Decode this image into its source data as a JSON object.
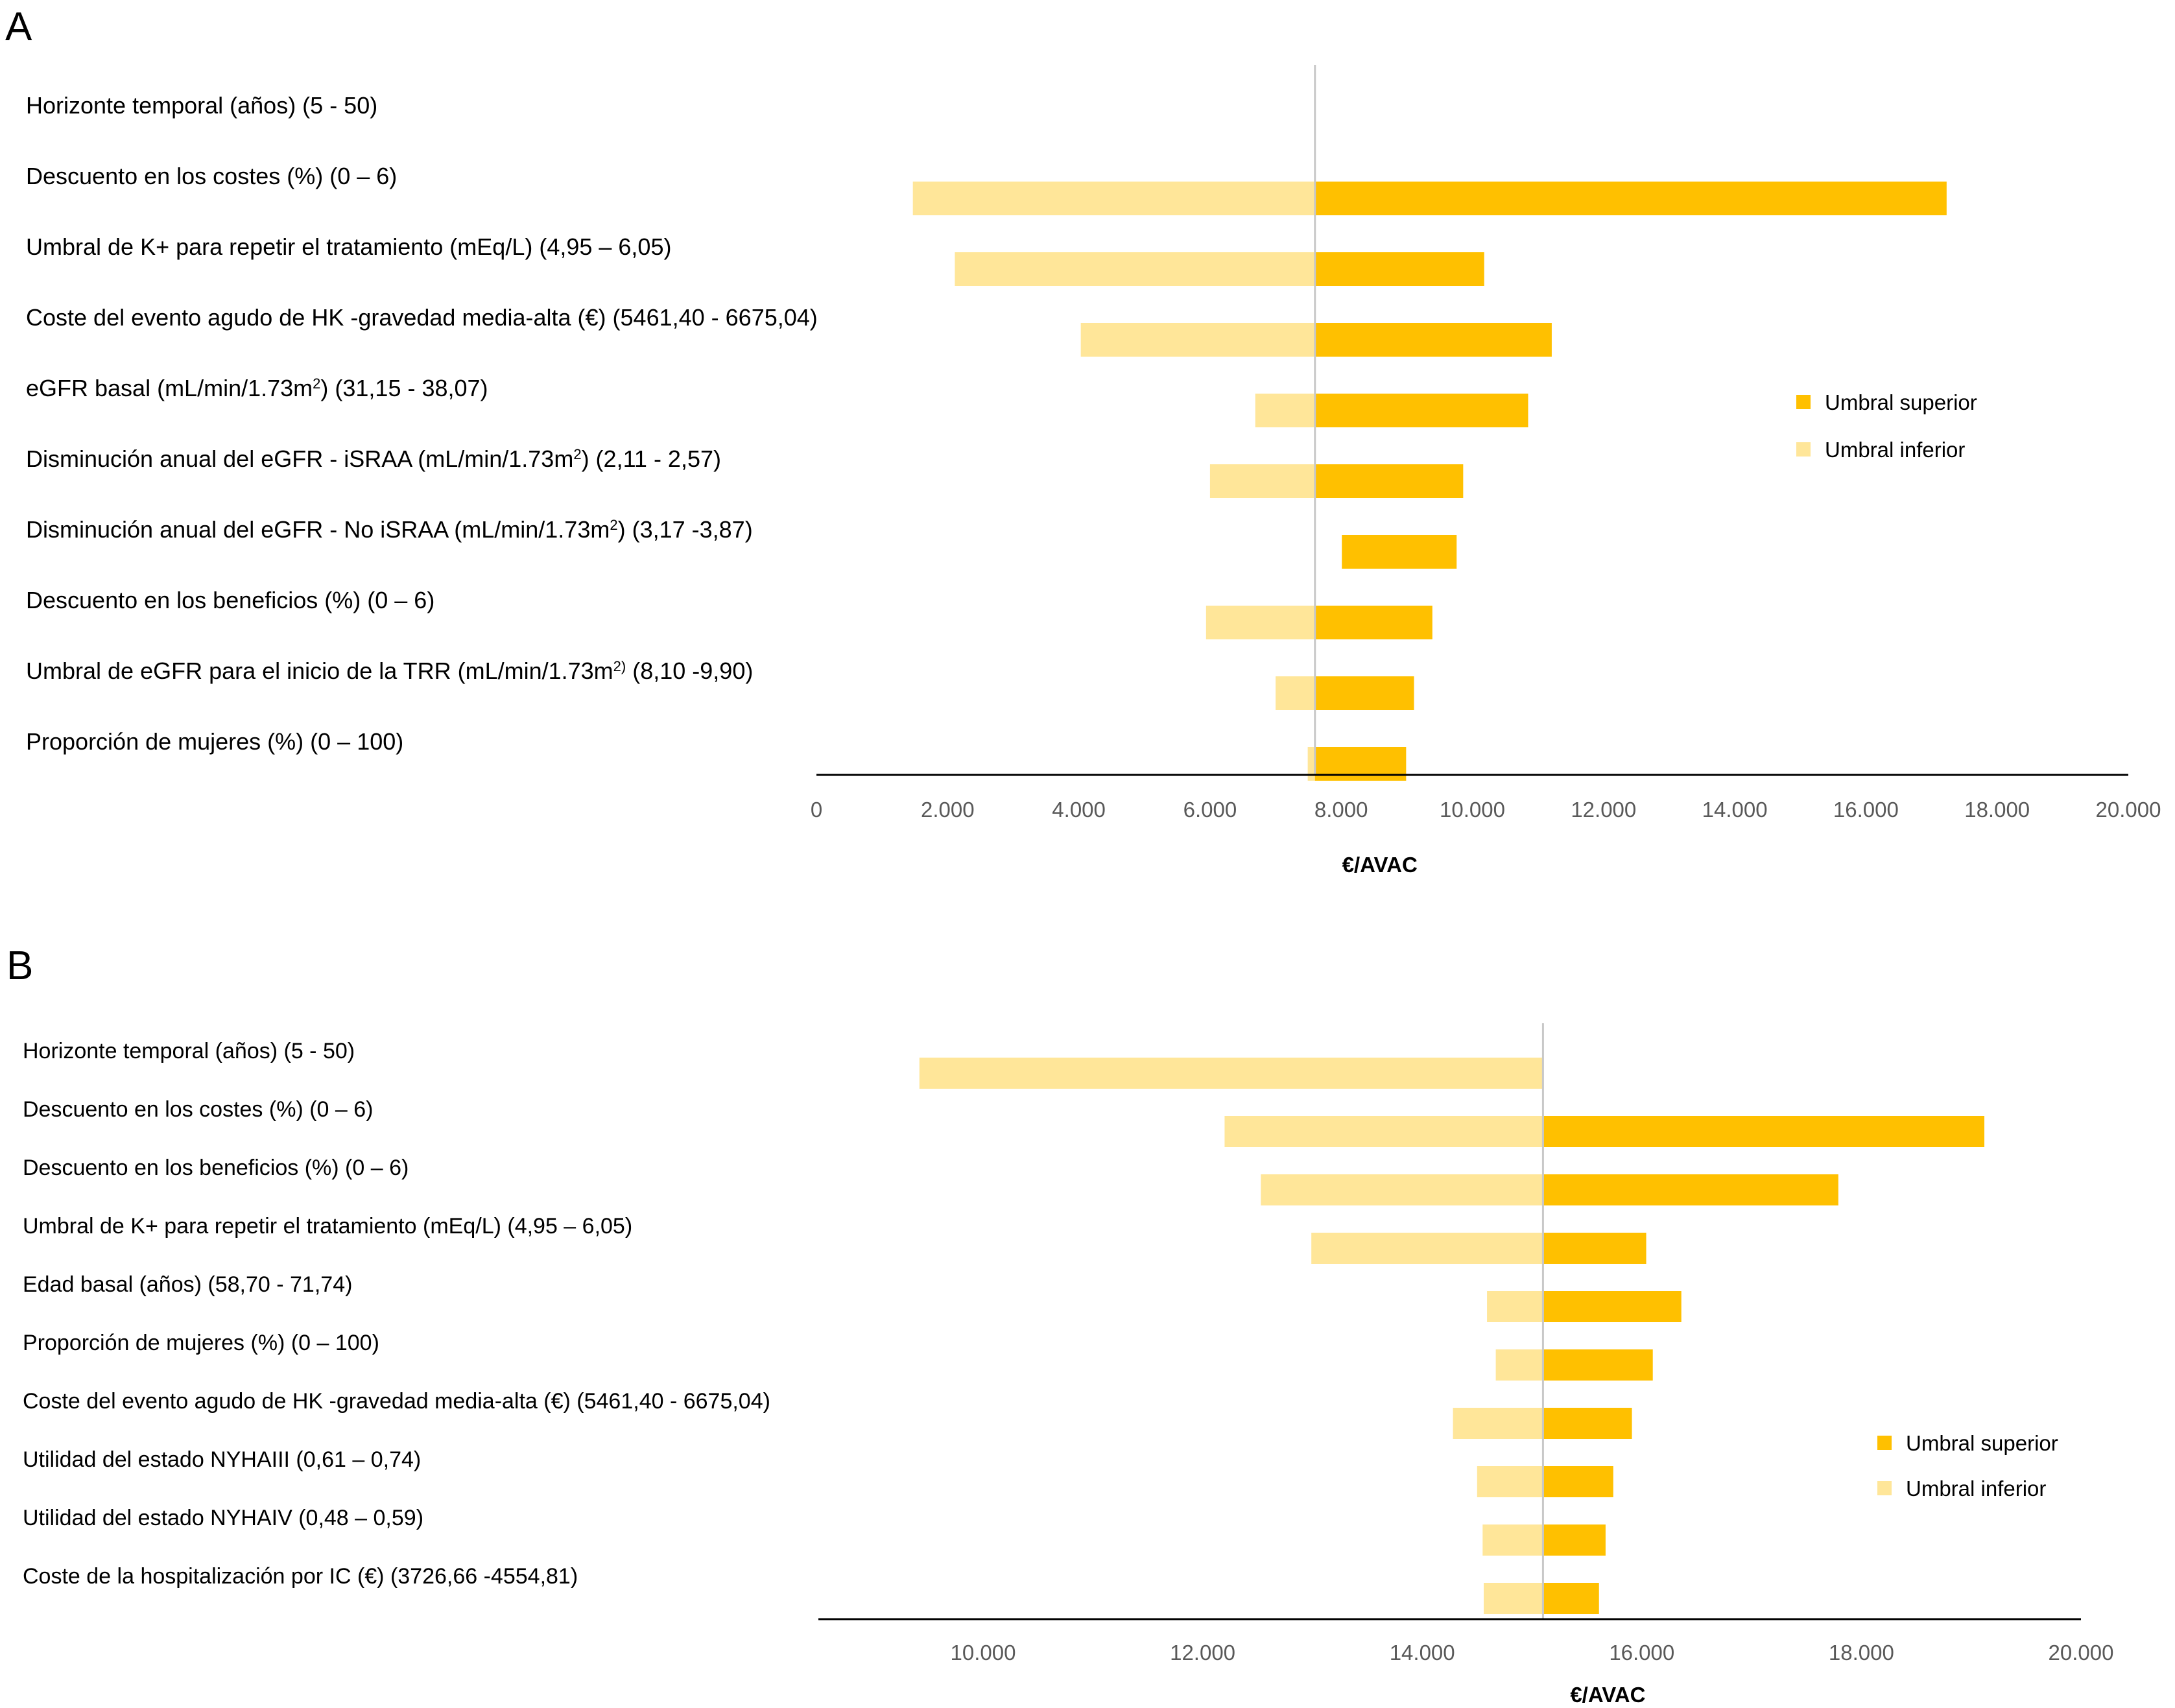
{
  "chart_data": [
    {
      "panel": "A",
      "type": "tornado",
      "xlabel": "€/AVAC",
      "xlim": [
        0,
        20000
      ],
      "ticks": [
        0,
        2000,
        4000,
        6000,
        8000,
        10000,
        12000,
        14000,
        16000,
        18000,
        20000
      ],
      "tick_labels": [
        "0",
        "2.000",
        "4.000",
        "6.000",
        "8.000",
        "10.000",
        "12.000",
        "14.000",
        "16.000",
        "18.000",
        "20.000"
      ],
      "base": 7600,
      "legend_position": "right",
      "series": [
        {
          "name": "Umbral superior",
          "color": "#FFC000"
        },
        {
          "name": "Umbral inferior",
          "color": "#FFE699"
        }
      ],
      "rows": [
        {
          "label": "Horizonte temporal (años) (5 - 50)",
          "label_sup": "",
          "label_tail": "",
          "low": null,
          "high": null
        },
        {
          "label": "Descuento en los costes (%) (0 – 6)",
          "label_sup": "",
          "label_tail": "",
          "low": 1470,
          "high": 17230
        },
        {
          "label": "Umbral  de K+ para repetir el tratamiento (mEq/L) (4,95 – 6,05)",
          "label_sup": "",
          "label_tail": "",
          "low": 2110,
          "high": 10180
        },
        {
          "label": "Coste del evento agudo de HK -gravedad media-alta (€) (5461,40 - 6675,04)",
          "label_sup": "",
          "label_tail": "",
          "low": 4030,
          "high": 11210
        },
        {
          "label": "eGFR basal (mL/min/1.73m",
          "label_sup": "2",
          "label_tail": ")  (31,15 - 38,07)",
          "low": 6690,
          "high": 10850
        },
        {
          "label": "Disminución anual del eGFR - iSRAA (mL/min/1.73m",
          "label_sup": "2",
          "label_tail": ")  (2,11 - 2,57)",
          "low": 6000,
          "high": 9860
        },
        {
          "label": "Disminución anual del eGFR - No iSRAA (mL/min/1.73m",
          "label_sup": "2",
          "label_tail": ")  (3,17 -3,87)",
          "low": 8010,
          "high": 9760
        },
        {
          "label": "Descuento en los beneficios (%) (0 – 6)",
          "label_sup": "",
          "label_tail": "",
          "low": 5940,
          "high": 9390
        },
        {
          "label": "Umbral  de eGFR para el inicio de la TRR (mL/min/1.73m",
          "label_sup": "2)",
          "label_tail": " (8,10 -9,90)",
          "low": 7000,
          "high": 9110
        },
        {
          "label": "Proporción de mujeres (%) (0 – 100)",
          "label_sup": "",
          "label_tail": "",
          "low": 7490,
          "high": 8990
        }
      ]
    },
    {
      "panel": "B",
      "type": "tornado",
      "xlabel": "€/AVAC",
      "xlim": [
        8500,
        20000
      ],
      "ticks": [
        10000,
        12000,
        14000,
        16000,
        18000,
        20000
      ],
      "tick_labels": [
        "10.000",
        "12.000",
        "14.000",
        "16.000",
        "18.000",
        "20.000"
      ],
      "base": 15100,
      "legend_position": "right",
      "series": [
        {
          "name": "Umbral superior",
          "color": "#FFC000"
        },
        {
          "name": "Umbral inferior",
          "color": "#FFE699"
        }
      ],
      "rows": [
        {
          "label": "Horizonte temporal (años) (5 - 50)",
          "low": 9420,
          "high": null
        },
        {
          "label": "Descuento en los costes (%) (0 – 6)",
          "low": 12200,
          "high": 19120
        },
        {
          "label": "Descuento en los beneficios (%) (0 – 6)",
          "low": 12530,
          "high": 17790
        },
        {
          "label": "Umbral  de K+ para repetir el tratamiento (mEq/L) (4,95 – 6,05)",
          "low": 12990,
          "high": 16040
        },
        {
          "label": "Edad basal (años) (58,70 - 71,74)",
          "low": 14590,
          "high": 16360
        },
        {
          "label": "Proporción de mujeres (%) (0 – 100)",
          "low": 14670,
          "high": 16100
        },
        {
          "label": "Coste del evento agudo de HK -gravedad media-alta (€) (5461,40 - 6675,04)",
          "low": 14280,
          "high": 15910
        },
        {
          "label": "Utilidad del estado NYHAIII  (0,61 – 0,74)",
          "low": 14500,
          "high": 15740
        },
        {
          "label": "Utilidad del estado NYHAIV  (0,48 – 0,59)",
          "low": 14550,
          "high": 15670
        },
        {
          "label": "Coste de la hospitalización por IC (€) (3726,66 -4554,81)",
          "low": 14560,
          "high": 15610
        }
      ]
    }
  ],
  "panels": {
    "a_letter": "A",
    "b_letter": "B"
  }
}
